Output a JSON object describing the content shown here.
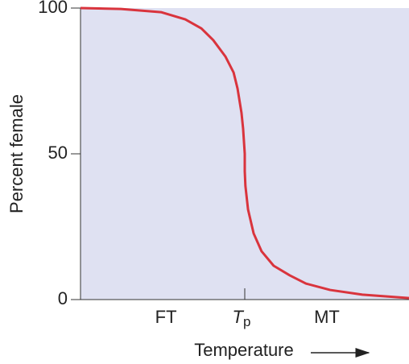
{
  "chart_data": {
    "type": "line",
    "y_label": "Percent female",
    "x_label": "Temperature",
    "x": [
      0,
      1.23,
      2.45,
      3.19,
      3.68,
      4.04,
      4.41,
      4.66,
      4.78,
      4.9,
      4.95,
      5,
      5,
      5.02,
      5.1,
      5.27,
      5.51,
      5.88,
      6.37,
      6.86,
      7.6,
      8.58,
      10
    ],
    "series": [
      {
        "color": "#d9343d",
        "values": [
          100,
          99.7,
          98.6,
          96.1,
          93,
          89,
          83.4,
          77.9,
          72.4,
          64.1,
          58.6,
          50,
          44,
          39,
          30.9,
          22.7,
          16.6,
          11.6,
          8.3,
          5.5,
          3.3,
          1.7,
          0.5
        ]
      }
    ],
    "xlim": [
      0,
      10
    ],
    "xticks": [
      {
        "value": 5,
        "label": "T",
        "subscript": "p"
      }
    ],
    "regions": [
      {
        "x": 2.6,
        "label": "FT"
      },
      {
        "x": 7.5,
        "label": "MT"
      }
    ],
    "ylim": [
      0,
      100
    ],
    "yticks": [
      0,
      50,
      100
    ],
    "background": "#dfe1f2"
  }
}
